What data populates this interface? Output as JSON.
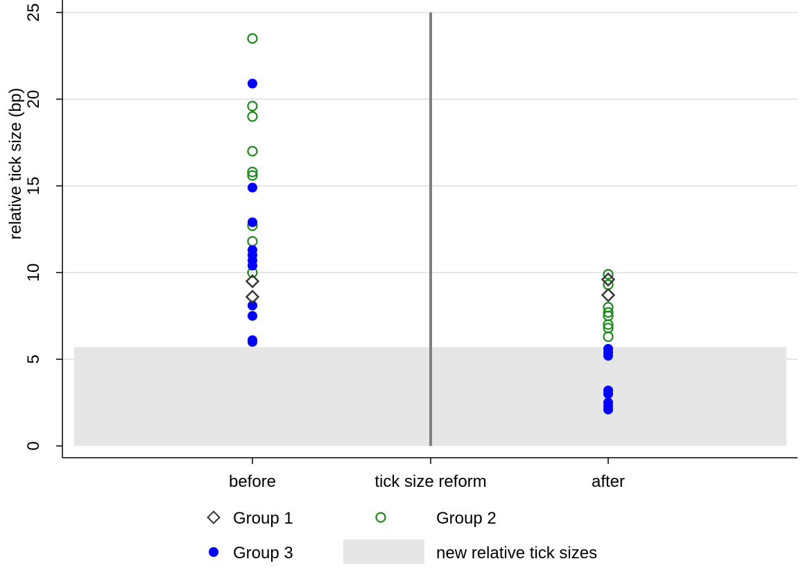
{
  "chart_data": {
    "type": "scatter",
    "title": "",
    "ylabel": "relative tick size (bp)",
    "xlabel": "",
    "ylim": [
      0,
      25
    ],
    "yticks": [
      0,
      5,
      10,
      15,
      20,
      25
    ],
    "grid": true,
    "categories": [
      "before",
      "tick size reform",
      "after"
    ],
    "reform_line_at": "tick size reform",
    "band": {
      "name": "new relative tick sizes",
      "y_range": [
        0,
        5.7
      ],
      "color": "#e6e6e6"
    },
    "series": [
      {
        "name": "Group 1",
        "marker": "diamond-open",
        "color": "#333333",
        "points": [
          {
            "x": "before",
            "y": 9.5
          },
          {
            "x": "before",
            "y": 8.6
          },
          {
            "x": "after",
            "y": 9.6
          },
          {
            "x": "after",
            "y": 8.7
          }
        ]
      },
      {
        "name": "Group 2",
        "marker": "circle-open",
        "color": "#1a8a1a",
        "points": [
          {
            "x": "before",
            "y": 23.5
          },
          {
            "x": "before",
            "y": 19.6
          },
          {
            "x": "before",
            "y": 19.0
          },
          {
            "x": "before",
            "y": 17.0
          },
          {
            "x": "before",
            "y": 15.8
          },
          {
            "x": "before",
            "y": 15.6
          },
          {
            "x": "before",
            "y": 12.7
          },
          {
            "x": "before",
            "y": 11.8
          },
          {
            "x": "before",
            "y": 10.0
          },
          {
            "x": "after",
            "y": 9.9
          },
          {
            "x": "after",
            "y": 9.3
          },
          {
            "x": "after",
            "y": 8.0
          },
          {
            "x": "after",
            "y": 7.7
          },
          {
            "x": "after",
            "y": 7.5
          },
          {
            "x": "after",
            "y": 7.0
          },
          {
            "x": "after",
            "y": 6.8
          },
          {
            "x": "after",
            "y": 6.3
          }
        ]
      },
      {
        "name": "Group 3",
        "marker": "circle-filled",
        "color": "#0000ff",
        "points": [
          {
            "x": "before",
            "y": 20.9
          },
          {
            "x": "before",
            "y": 14.9
          },
          {
            "x": "before",
            "y": 12.9
          },
          {
            "x": "before",
            "y": 11.3
          },
          {
            "x": "before",
            "y": 11.0
          },
          {
            "x": "before",
            "y": 10.7
          },
          {
            "x": "before",
            "y": 10.4
          },
          {
            "x": "before",
            "y": 8.1
          },
          {
            "x": "before",
            "y": 7.5
          },
          {
            "x": "before",
            "y": 6.1
          },
          {
            "x": "before",
            "y": 6.0
          },
          {
            "x": "after",
            "y": 5.6
          },
          {
            "x": "after",
            "y": 5.4
          },
          {
            "x": "after",
            "y": 5.2
          },
          {
            "x": "after",
            "y": 3.2
          },
          {
            "x": "after",
            "y": 3.0
          },
          {
            "x": "after",
            "y": 2.5
          },
          {
            "x": "after",
            "y": 2.3
          },
          {
            "x": "after",
            "y": 2.1
          }
        ]
      }
    ],
    "legend": {
      "placement": "bottom",
      "entries": [
        "Group 1",
        "Group 2",
        "Group 3",
        "new relative tick sizes"
      ]
    }
  }
}
